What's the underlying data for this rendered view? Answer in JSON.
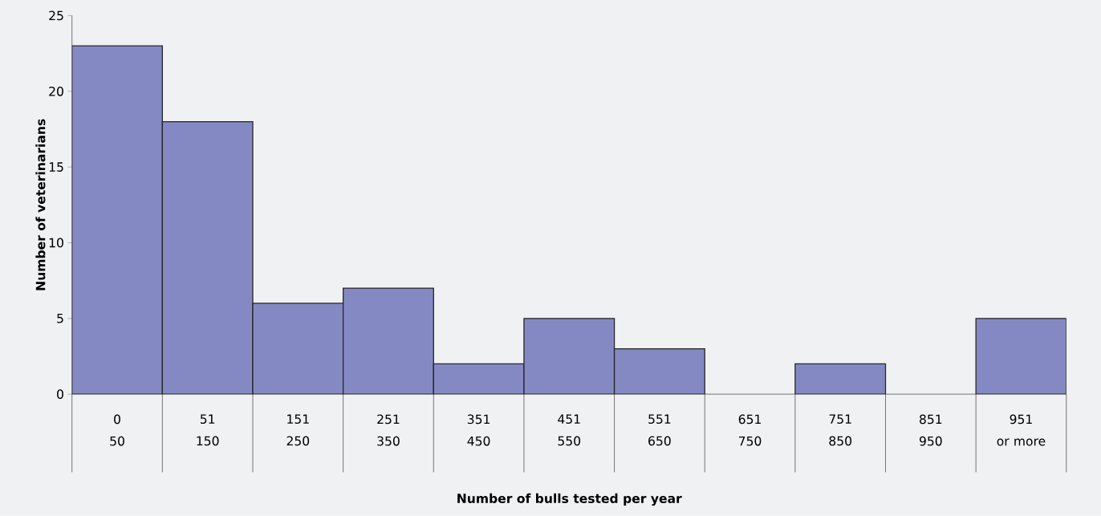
{
  "chart_data": {
    "type": "bar",
    "xlabel": "Number of bulls tested per year",
    "ylabel": "Number of veterinarians",
    "categories": [
      "0\n50",
      "51\n150",
      "151\n250",
      "251\n350",
      "351\n450",
      "451\n550",
      "551\n650",
      "651\n750",
      "751\n850",
      "851\n950",
      "951\nor more"
    ],
    "values": [
      23,
      18,
      6,
      7,
      2,
      5,
      3,
      0,
      2,
      0,
      5
    ],
    "color": "#8589c3",
    "ylim": [
      0,
      25
    ],
    "yticks": [
      0,
      5,
      10,
      15,
      20,
      25
    ]
  }
}
